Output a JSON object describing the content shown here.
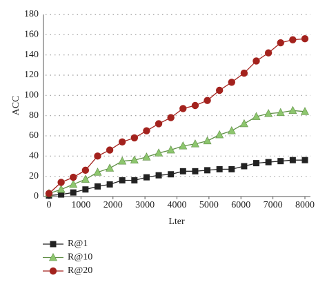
{
  "chart_data": {
    "type": "line",
    "x_label": "Lter",
    "y_label": "ACC",
    "x": [
      0,
      380,
      760,
      1140,
      1520,
      1900,
      2290,
      2670,
      3050,
      3430,
      3810,
      4190,
      4570,
      4950,
      5330,
      5710,
      6100,
      6480,
      6860,
      7240,
      7620,
      8000
    ],
    "series": [
      {
        "name": "R@1",
        "color": "#222222",
        "line_color": "#222222",
        "marker": "square",
        "values": [
          1,
          2,
          4,
          7,
          10,
          12,
          16,
          16,
          19,
          21,
          22,
          25,
          25,
          26,
          27,
          27,
          30,
          33,
          34,
          35,
          36,
          36
        ]
      },
      {
        "name": "R@10",
        "color": "#8dc66e",
        "line_color": "#5f8f45",
        "marker": "triangle",
        "values": [
          3,
          7,
          12,
          17,
          24,
          28,
          35,
          36,
          39,
          43,
          46,
          50,
          52,
          55,
          61,
          65,
          72,
          79,
          82,
          83,
          85,
          84
        ]
      },
      {
        "name": "R@20",
        "color": "#a3221d",
        "line_color": "#a3221d",
        "marker": "circle",
        "values": [
          3,
          14,
          19,
          26,
          40,
          46,
          54,
          58,
          65,
          72,
          78,
          87,
          90,
          95,
          105,
          113,
          122,
          134,
          142,
          152,
          155,
          156
        ]
      }
    ],
    "xlim": [
      0,
      8000
    ],
    "xticks": [
      0,
      1000,
      2000,
      3000,
      4000,
      5000,
      6000,
      7000,
      8000
    ],
    "ylim": [
      0,
      180
    ],
    "yticks": [
      0,
      20,
      40,
      60,
      80,
      100,
      120,
      140,
      160,
      180
    ],
    "grid": true,
    "legend": "bottom-left"
  }
}
